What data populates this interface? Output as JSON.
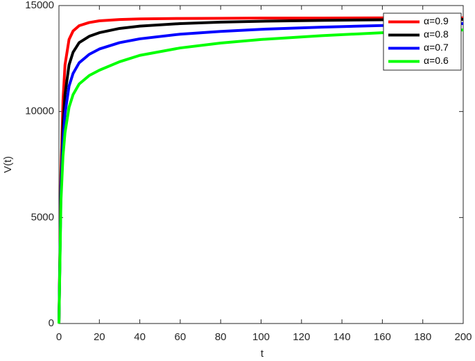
{
  "chart_data": {
    "type": "line",
    "x_label": "t",
    "y_label": "V(t)",
    "x": [
      0,
      1,
      2,
      3,
      5,
      7,
      10,
      15,
      20,
      30,
      40,
      60,
      80,
      100,
      130,
      160,
      200
    ],
    "series": [
      {
        "name": "α=0.9",
        "color": "#ff0000",
        "values": [
          0,
          7000,
          10500,
          12200,
          13400,
          13800,
          14050,
          14200,
          14280,
          14340,
          14370,
          14390,
          14400,
          14410,
          14410,
          14420,
          14420
        ]
      },
      {
        "name": "α=0.8",
        "color": "#000000",
        "values": [
          0,
          6500,
          9300,
          10800,
          12200,
          12800,
          13250,
          13550,
          13720,
          13920,
          14030,
          14150,
          14220,
          14260,
          14300,
          14330,
          14350
        ]
      },
      {
        "name": "α=0.7",
        "color": "#0000ff",
        "values": [
          0,
          6200,
          8600,
          9900,
          11200,
          11800,
          12300,
          12700,
          12950,
          13250,
          13430,
          13650,
          13780,
          13880,
          13980,
          14060,
          14150
        ]
      },
      {
        "name": "α=0.6",
        "color": "#00ff00",
        "values": [
          0,
          5800,
          7900,
          9000,
          10200,
          10800,
          11300,
          11700,
          11950,
          12350,
          12650,
          13000,
          13230,
          13400,
          13580,
          13720,
          13850
        ]
      }
    ],
    "xlim": [
      0,
      200
    ],
    "xticks": [
      0,
      20,
      40,
      60,
      80,
      100,
      120,
      140,
      160,
      180,
      200
    ],
    "ylim": [
      0,
      15000
    ],
    "yticks": [
      0,
      5000,
      10000,
      15000
    ],
    "grid": false,
    "legend": "northeast"
  }
}
